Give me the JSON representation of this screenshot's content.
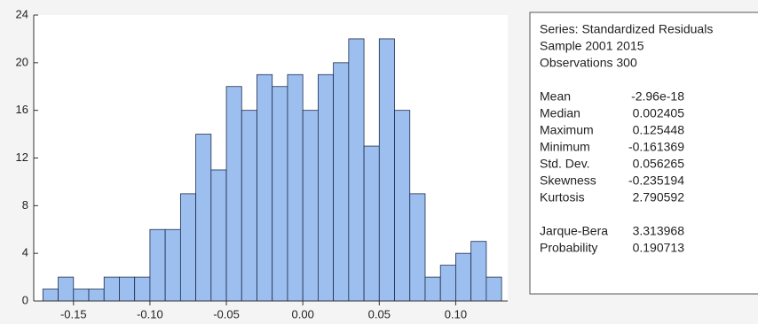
{
  "chart_data": {
    "type": "histogram",
    "bins": [
      -0.17,
      -0.16,
      -0.15,
      -0.14,
      -0.13,
      -0.12,
      -0.11,
      -0.1,
      -0.09,
      -0.08,
      -0.07,
      -0.06,
      -0.05,
      -0.04,
      -0.03,
      -0.02,
      -0.01,
      0,
      0.01,
      0.02,
      0.03,
      0.04,
      0.05,
      0.06,
      0.07,
      0.08,
      0.09,
      0.1,
      0.11,
      0.12,
      0.13
    ],
    "counts": [
      1,
      2,
      1,
      1,
      2,
      2,
      2,
      6,
      6,
      9,
      14,
      11,
      18,
      16,
      19,
      18,
      19,
      16,
      19,
      20,
      22,
      13,
      22,
      16,
      9,
      2,
      3,
      4,
      5,
      2
    ],
    "color": "#9dbff0",
    "xlim": [
      -0.176,
      0.134
    ],
    "xticks": [
      -0.15,
      {
        "value": -0.1,
        "label": "-0.10"
      },
      -0.05,
      {
        "value": 0,
        "label": "0.00"
      },
      0.05,
      {
        "value": 0.1,
        "label": "0.10"
      }
    ],
    "ylim": [
      0,
      24
    ],
    "yticks": [
      0,
      4,
      8,
      12,
      16,
      20,
      24
    ]
  },
  "stats": {
    "header": [
      "Series: Standardized Residuals",
      "Sample 2001 2015",
      "Observations 300"
    ],
    "groups": [
      [
        [
          "Mean",
          "-2.96e-18"
        ],
        [
          "Median",
          "0.002405"
        ],
        [
          "Maximum",
          "0.125448"
        ],
        [
          "Minimum",
          "-0.161369"
        ],
        [
          "Std. Dev.",
          "0.056265"
        ],
        [
          "Skewness",
          "-0.235194"
        ],
        [
          "Kurtosis",
          "2.790592"
        ]
      ],
      [
        [
          "Jarque-Bera",
          "3.313968"
        ],
        [
          "Probability",
          "0.190713"
        ]
      ]
    ]
  }
}
